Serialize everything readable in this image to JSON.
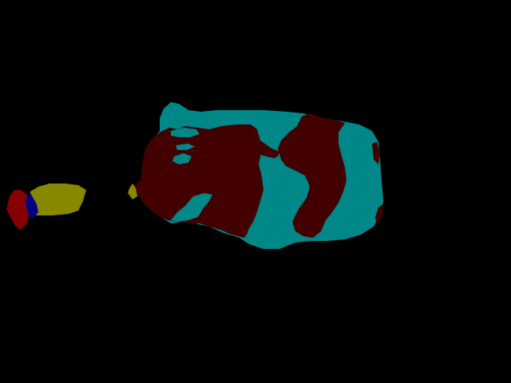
{
  "image": {
    "kind": "segmentation-mask",
    "background_color": "#000000"
  },
  "palette": {
    "maroon": "#420000",
    "teal": "#008787",
    "olive": "#878700",
    "red": "#870000",
    "navy": "#000087"
  }
}
